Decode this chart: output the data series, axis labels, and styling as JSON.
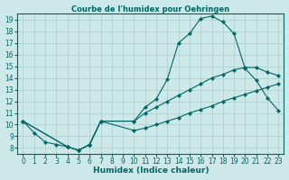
{
  "title": "Courbe de l'humidex pour Oehringen",
  "xlabel": "Humidex (Indice chaleur)",
  "bg_color": "#cce8e8",
  "grid_color": "#aacccc",
  "line_color": "#006666",
  "xlim": [
    -0.5,
    23.5
  ],
  "ylim": [
    7.5,
    19.5
  ],
  "xticks": [
    0,
    1,
    2,
    3,
    4,
    5,
    6,
    7,
    8,
    9,
    10,
    11,
    12,
    13,
    14,
    15,
    16,
    17,
    18,
    19,
    20,
    21,
    22,
    23
  ],
  "yticks": [
    8,
    9,
    10,
    11,
    12,
    13,
    14,
    15,
    16,
    17,
    18,
    19
  ],
  "line1_x": [
    0,
    1,
    2,
    3,
    4,
    5,
    6,
    7,
    10,
    11,
    12,
    13,
    14,
    15,
    16,
    17,
    18,
    19,
    20,
    21,
    22,
    23
  ],
  "line1_y": [
    10.3,
    9.3,
    8.5,
    8.3,
    8.1,
    7.8,
    8.3,
    10.3,
    10.3,
    11.5,
    12.2,
    13.9,
    17.0,
    17.8,
    19.1,
    19.3,
    18.8,
    17.8,
    14.8,
    13.8,
    12.3,
    11.2
  ],
  "line2_x": [
    0,
    4,
    5,
    6,
    7,
    10,
    11,
    12,
    13,
    14,
    15,
    16,
    17,
    18,
    19,
    20,
    21,
    22,
    23
  ],
  "line2_y": [
    10.3,
    8.1,
    7.8,
    8.3,
    10.3,
    10.3,
    11.0,
    11.5,
    12.0,
    12.5,
    13.0,
    13.5,
    14.0,
    14.3,
    14.7,
    14.9,
    14.9,
    14.5,
    14.2
  ],
  "line3_x": [
    0,
    4,
    5,
    6,
    7,
    10,
    11,
    12,
    13,
    14,
    15,
    16,
    17,
    18,
    19,
    20,
    21,
    22,
    23
  ],
  "line3_y": [
    10.3,
    8.1,
    7.8,
    8.3,
    10.3,
    9.5,
    9.7,
    10.0,
    10.3,
    10.6,
    11.0,
    11.3,
    11.6,
    12.0,
    12.3,
    12.6,
    12.9,
    13.2,
    13.5
  ],
  "tick_fontsize": 5.5,
  "xlabel_fontsize": 6.5,
  "title_fontsize": 6.0
}
